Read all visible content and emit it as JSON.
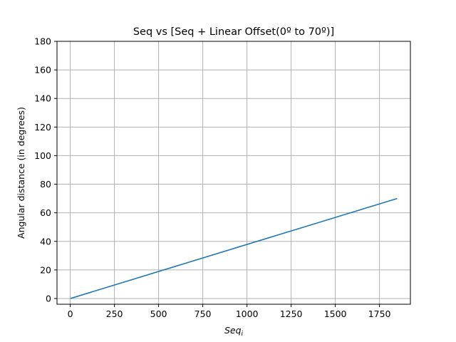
{
  "chart_data": {
    "type": "line",
    "title": "Seq vs [Seq + Linear Offset(0º to 70º)]",
    "xlabel_main": "Seq",
    "xlabel_sub": "i",
    "ylabel": "Angular distance (in degrees)",
    "xlim": [
      -75,
      1925
    ],
    "ylim": [
      -4,
      180
    ],
    "x_ticks": [
      0,
      250,
      500,
      750,
      1000,
      1250,
      1500,
      1750
    ],
    "x_tick_labels": [
      "0",
      "250",
      "500",
      "750",
      "1000",
      "1250",
      "1500",
      "1750"
    ],
    "y_ticks": [
      0,
      20,
      40,
      60,
      80,
      100,
      120,
      140,
      160,
      180
    ],
    "y_tick_labels": [
      "0",
      "20",
      "40",
      "60",
      "80",
      "100",
      "120",
      "140",
      "160",
      "180"
    ],
    "grid": true,
    "series": [
      {
        "color": "#1f77b4",
        "x": [
          0,
          1850
        ],
        "y": [
          0,
          70
        ]
      }
    ]
  }
}
